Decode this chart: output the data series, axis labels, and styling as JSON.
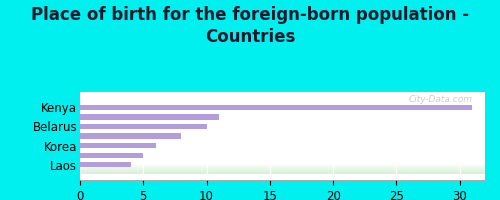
{
  "title_line1": "Place of birth for the foreign-born population -",
  "title_line2": "Countries",
  "categories": [
    "",
    "Laos",
    "",
    "Korea",
    "",
    "Belarus",
    "",
    "Kenya",
    ""
  ],
  "values": [
    0,
    4,
    5,
    6,
    8,
    10,
    11,
    31,
    0
  ],
  "labeled_indices": [
    1,
    3,
    5,
    7
  ],
  "bar_color": "#b39ddb",
  "bg_outer": "#00f0f0",
  "bg_inner_light": "#f4fff4",
  "bg_inner_dark": "#d8edd8",
  "xlim": [
    0,
    32
  ],
  "xticks": [
    0,
    5,
    10,
    15,
    20,
    25,
    30
  ],
  "watermark": "City-Data.com",
  "title_fontsize": 12,
  "tick_fontsize": 8.5,
  "bar_height": 0.55
}
